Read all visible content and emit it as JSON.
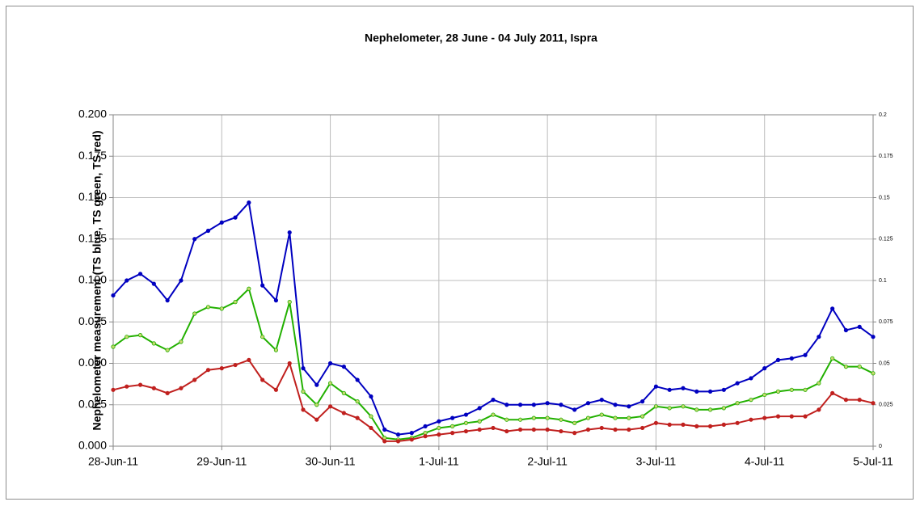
{
  "chart_data": {
    "type": "line",
    "title": "Nephelometer, 28 June - 04 July 2011, Ispra",
    "y_label": "Nephelometer measurement  (TS blue, TS green, TS red)",
    "categories": [
      "28-Jun-11",
      null,
      null,
      null,
      null,
      null,
      null,
      null,
      "29-Jun-11",
      null,
      null,
      null,
      null,
      null,
      null,
      null,
      "30-Jun-11",
      null,
      null,
      null,
      null,
      null,
      null,
      null,
      "1-Jul-11",
      null,
      null,
      null,
      null,
      null,
      null,
      null,
      "2-Jul-11",
      null,
      null,
      null,
      null,
      null,
      null,
      null,
      "3-Jul-11",
      null,
      null,
      null,
      null,
      null,
      null,
      null,
      "4-Jul-11",
      null,
      null,
      null,
      null,
      null,
      null,
      null,
      "5-Jul-11"
    ],
    "series": [
      {
        "color": "#0000c0",
        "values": [
          0.091,
          0.1,
          0.104,
          0.098,
          0.088,
          0.1,
          0.125,
          0.13,
          0.135,
          0.138,
          0.147,
          0.097,
          0.088,
          0.129,
          0.047,
          0.037,
          0.05,
          0.048,
          0.04,
          0.03,
          0.01,
          0.007,
          0.008,
          0.012,
          0.015,
          0.017,
          0.019,
          0.023,
          0.028,
          0.025,
          0.025,
          0.025,
          0.026,
          0.025,
          0.022,
          0.026,
          0.028,
          0.025,
          0.024,
          0.027,
          0.036,
          0.034,
          0.035,
          0.033,
          0.033,
          0.034,
          0.038,
          0.041,
          0.047,
          0.052,
          0.053,
          0.055,
          0.066,
          0.083,
          0.07,
          0.072,
          0.066
        ]
      },
      {
        "color": "#22b000",
        "values": [
          0.06,
          0.066,
          0.067,
          0.062,
          0.058,
          0.063,
          0.08,
          0.084,
          0.083,
          0.087,
          0.095,
          0.066,
          0.058,
          0.087,
          0.033,
          0.025,
          0.038,
          0.032,
          0.027,
          0.018,
          0.005,
          0.004,
          0.005,
          0.008,
          0.011,
          0.012,
          0.014,
          0.015,
          0.019,
          0.016,
          0.016,
          0.017,
          0.017,
          0.016,
          0.014,
          0.017,
          0.019,
          0.017,
          0.017,
          0.018,
          0.024,
          0.023,
          0.024,
          0.022,
          0.022,
          0.023,
          0.026,
          0.028,
          0.031,
          0.033,
          0.034,
          0.034,
          0.038,
          0.053,
          0.048,
          0.048,
          0.044
        ]
      },
      {
        "color": "#c0201e",
        "values": [
          0.034,
          0.036,
          0.037,
          0.035,
          0.032,
          0.035,
          0.04,
          0.046,
          0.047,
          0.049,
          0.052,
          0.04,
          0.034,
          0.05,
          0.022,
          0.016,
          0.024,
          0.02,
          0.017,
          0.011,
          0.003,
          0.003,
          0.004,
          0.006,
          0.007,
          0.008,
          0.009,
          0.01,
          0.011,
          0.009,
          0.01,
          0.01,
          0.01,
          0.009,
          0.008,
          0.01,
          0.011,
          0.01,
          0.01,
          0.011,
          0.014,
          0.013,
          0.013,
          0.012,
          0.012,
          0.013,
          0.014,
          0.016,
          0.017,
          0.018,
          0.018,
          0.018,
          0.022,
          0.032,
          0.028,
          0.028,
          0.026
        ]
      }
    ],
    "ylim": [
      0,
      0.2
    ],
    "yticks": [
      {
        "value": 0,
        "label": "0.000"
      },
      {
        "value": 0.025,
        "label": "0.025"
      },
      {
        "value": 0.05,
        "label": "0.050"
      },
      {
        "value": 0.075,
        "label": "0.075"
      },
      {
        "value": 0.1,
        "label": "0.100"
      },
      {
        "value": 0.125,
        "label": "0.125"
      },
      {
        "value": 0.15,
        "label": "0.150"
      },
      {
        "value": 0.175,
        "label": "0.175"
      },
      {
        "value": 0.2,
        "label": "0.200"
      }
    ],
    "y2lim": [
      0,
      0.2
    ],
    "y2ticks": [
      0,
      0.025,
      0.05,
      0.075,
      0.1,
      0.125,
      0.15,
      0.175,
      0.2
    ],
    "grid": true
  }
}
